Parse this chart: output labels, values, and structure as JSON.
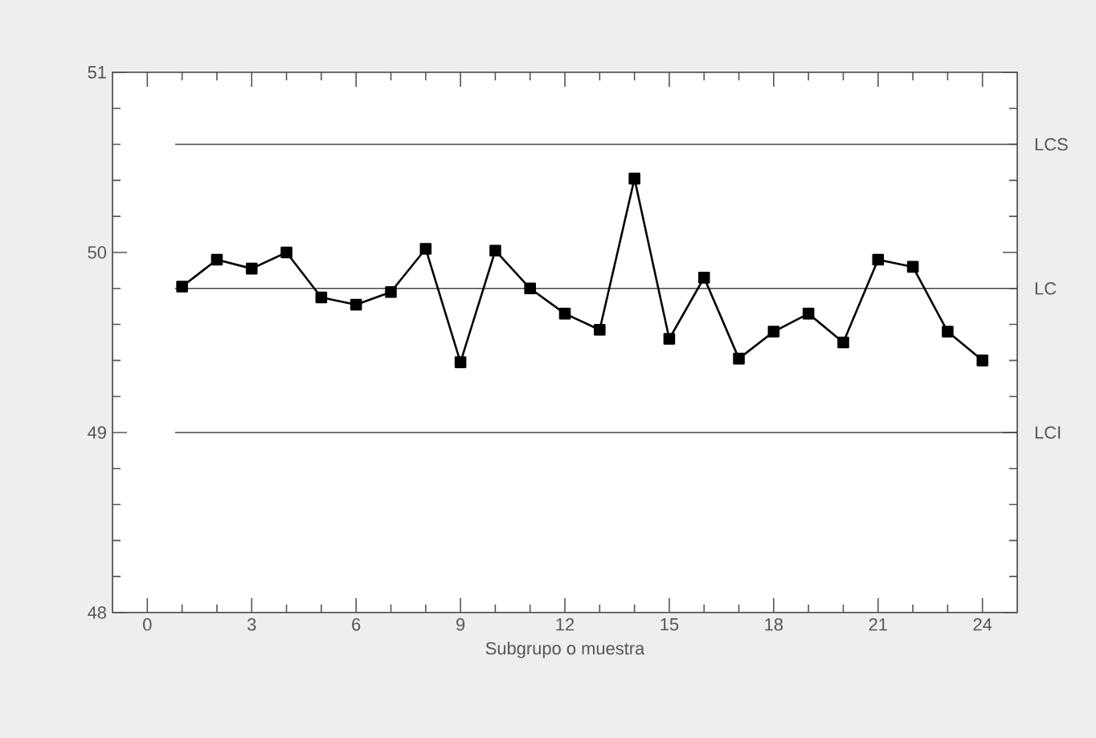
{
  "chart_data": {
    "type": "line",
    "xlabel": "Subgrupo o muestra",
    "x": [
      1,
      2,
      3,
      4,
      5,
      6,
      7,
      8,
      9,
      10,
      11,
      12,
      13,
      14,
      15,
      16,
      17,
      18,
      19,
      20,
      21,
      22,
      23,
      24
    ],
    "values": [
      49.81,
      49.96,
      49.91,
      50.0,
      49.75,
      49.71,
      49.78,
      50.02,
      49.39,
      50.01,
      49.8,
      49.66,
      49.57,
      50.41,
      49.52,
      49.86,
      49.41,
      49.56,
      49.66,
      49.5,
      49.96,
      49.92,
      49.56,
      49.4
    ],
    "color": "#000000",
    "marker": "square",
    "line_style": "solid",
    "xlim": [
      -1,
      25
    ],
    "ylim": [
      48,
      51
    ],
    "xticks": [
      0,
      3,
      6,
      9,
      12,
      15,
      18,
      21,
      24
    ],
    "yticks": [
      48,
      49,
      50,
      51
    ],
    "ref_lines": [
      {
        "axis": "y",
        "value": 50.6,
        "label": "LCS",
        "color": "#444444"
      },
      {
        "axis": "y",
        "value": 49.8,
        "label": "LC",
        "color": "#444444"
      },
      {
        "axis": "y",
        "value": 49.0,
        "label": "LCI",
        "color": "#444444"
      }
    ]
  }
}
